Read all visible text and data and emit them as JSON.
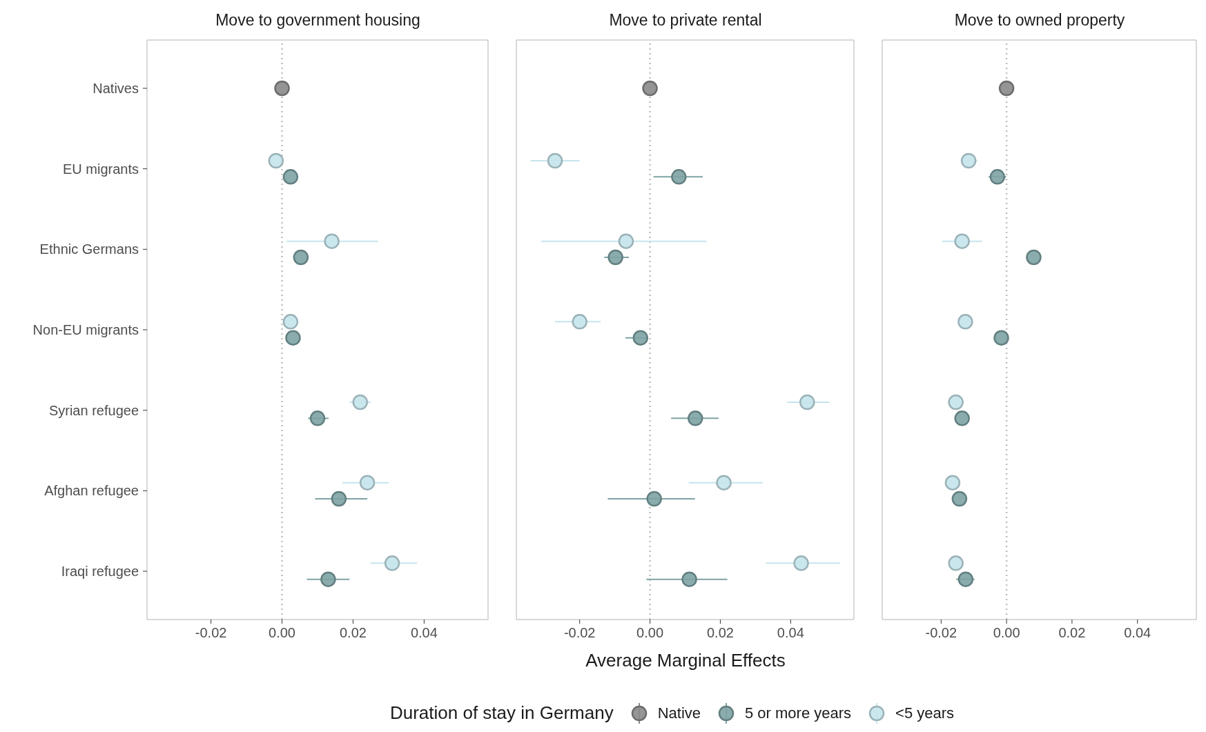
{
  "chart_data": [
    {
      "type": "scatter",
      "orientation": "horizontal",
      "title": "Move to government housing",
      "categories": [
        "Natives",
        "EU migrants",
        "Ethnic Germans",
        "Non-EU migrants",
        "Syrian refugee",
        "Afghan refugee",
        "Iraqi refugee"
      ],
      "xlim": [
        -0.038,
        0.058
      ],
      "xticks": [
        {
          "value": -0.02,
          "label": "-0.02"
        },
        {
          "value": 0,
          "label": "0.00"
        },
        {
          "value": 0.02,
          "label": "0.02"
        },
        {
          "value": 0.04,
          "label": "0.04"
        }
      ],
      "marker": "circle",
      "grid": false,
      "legend": "bottom",
      "legend_title": "Duration of stay in Germany",
      "ref_lines": [
        {
          "axis": "x",
          "value": 0,
          "line_style": "dotted",
          "color": "#bdbdbd"
        }
      ],
      "series": [
        {
          "name": "Native",
          "color": "#8a8a8a",
          "values": [
            0,
            null,
            null,
            null,
            null,
            null,
            null
          ],
          "errors": [
            null,
            null,
            null,
            null,
            null,
            null,
            null
          ]
        },
        {
          "name": "5 or more years",
          "color": "#7ea3a4",
          "values": [
            null,
            0.0024,
            0.0053,
            0.0031,
            0.01,
            0.016,
            0.013
          ],
          "errors": [
            null,
            null,
            null,
            null,
            [
              0.0073,
              0.0131
            ],
            [
              0.0093,
              0.024
            ],
            [
              0.007,
              0.019
            ]
          ]
        },
        {
          "name": "<5 years",
          "color": "#c5e4ec",
          "values": [
            null,
            -0.0017,
            0.014,
            0.0024,
            0.022,
            0.024,
            0.031
          ],
          "errors": [
            null,
            null,
            [
              0.0013,
              0.027
            ],
            null,
            [
              0.019,
              0.025
            ],
            [
              0.017,
              0.03
            ],
            [
              0.025,
              0.038
            ]
          ]
        }
      ]
    },
    {
      "type": "scatter",
      "orientation": "horizontal",
      "title": "Move to private rental",
      "xlabel": "Average Marginal Effects",
      "categories": [
        null,
        null,
        null,
        null,
        null,
        null,
        null
      ],
      "xlim": [
        -0.038,
        0.058
      ],
      "xticks": [
        {
          "value": -0.02,
          "label": "-0.02"
        },
        {
          "value": 0,
          "label": "0.00"
        },
        {
          "value": 0.02,
          "label": "0.02"
        },
        {
          "value": 0.04,
          "label": "0.04"
        }
      ],
      "tick_labels": "x",
      "marker": "circle",
      "grid": false,
      "ref_lines": [
        {
          "axis": "x",
          "value": 0,
          "line_style": "dotted",
          "color": "#bdbdbd"
        }
      ],
      "series": [
        {
          "color": "#8a8a8a",
          "values": [
            0,
            null,
            null,
            null,
            null,
            null,
            null
          ],
          "errors": [
            null,
            null,
            null,
            null,
            null,
            null,
            null
          ]
        },
        {
          "color": "#7ea3a4",
          "values": [
            null,
            0.0082,
            -0.0098,
            -0.0027,
            0.0129,
            0.0012,
            0.0112
          ],
          "errors": [
            null,
            [
              0.001,
              0.015
            ],
            [
              -0.013,
              -0.006
            ],
            [
              -0.007,
              -0.0005
            ],
            [
              0.006,
              0.0195
            ],
            [
              -0.012,
              0.0128
            ],
            [
              -0.001,
              0.022
            ]
          ]
        },
        {
          "color": "#c5e4ec",
          "values": [
            null,
            -0.027,
            -0.0068,
            -0.02,
            0.0447,
            0.021,
            0.043
          ],
          "errors": [
            null,
            [
              -0.034,
              -0.02
            ],
            [
              -0.031,
              0.016
            ],
            [
              -0.027,
              -0.014
            ],
            [
              0.039,
              0.051
            ],
            [
              0.011,
              0.032
            ],
            [
              0.033,
              0.054
            ]
          ]
        }
      ]
    },
    {
      "type": "scatter",
      "orientation": "horizontal",
      "title": "Move to owned property",
      "categories": [
        null,
        null,
        null,
        null,
        null,
        null,
        null
      ],
      "xlim": [
        -0.038,
        0.058
      ],
      "xticks": [
        {
          "value": -0.02,
          "label": "-0.02"
        },
        {
          "value": 0,
          "label": "0.00"
        },
        {
          "value": 0.02,
          "label": "0.02"
        },
        {
          "value": 0.04,
          "label": "0.04"
        }
      ],
      "tick_labels": "x",
      "marker": "circle",
      "grid": false,
      "ref_lines": [
        {
          "axis": "x",
          "value": 0,
          "line_style": "dotted",
          "color": "#bdbdbd"
        }
      ],
      "series": [
        {
          "color": "#8a8a8a",
          "values": [
            0,
            null,
            null,
            null,
            null,
            null,
            null
          ],
          "errors": [
            null,
            null,
            null,
            null,
            null,
            null,
            null
          ]
        },
        {
          "color": "#7ea3a4",
          "values": [
            null,
            -0.0028,
            0.0083,
            -0.0016,
            -0.0136,
            -0.0144,
            -0.0125
          ],
          "errors": [
            null,
            [
              -0.0055,
              -0.0001
            ],
            null,
            null,
            null,
            null,
            [
              -0.0154,
              -0.0098
            ]
          ]
        },
        {
          "color": "#c5e4ec",
          "values": [
            null,
            -0.0116,
            -0.0136,
            -0.0126,
            -0.0155,
            -0.0165,
            -0.0155
          ],
          "errors": [
            null,
            [
              -0.014,
              -0.009
            ],
            [
              -0.0197,
              -0.0075
            ],
            null,
            null,
            null,
            null
          ]
        }
      ]
    }
  ]
}
